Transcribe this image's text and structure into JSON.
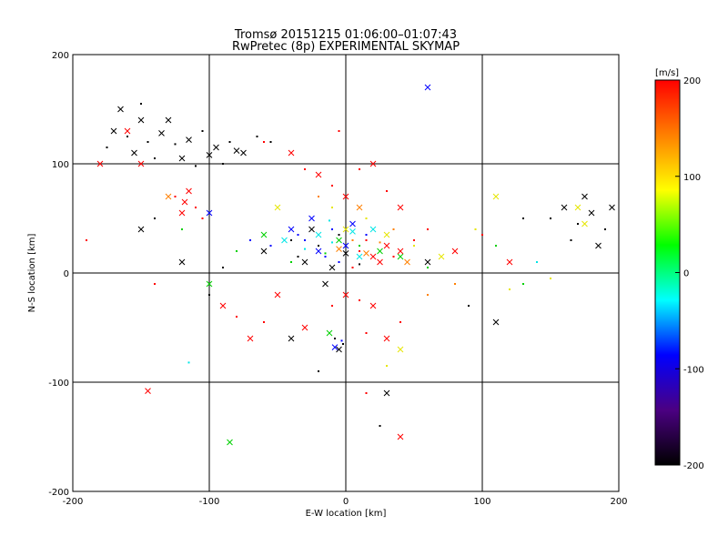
{
  "chart_data": {
    "type": "scatter",
    "title": "Tromsø 20151215 01:06:00–01:07:43",
    "subtitle": "RwPretec (8p) EXPERIMENTAL SKYMAP",
    "xlabel": "E-W location [km]",
    "ylabel": "N-S location [km]",
    "xlim": [
      -200,
      200
    ],
    "ylim": [
      -200,
      200
    ],
    "xticks": [
      "-200",
      "-100",
      "0",
      "100",
      "200"
    ],
    "yticks": [
      "-200",
      "-100",
      "0",
      "100",
      "200"
    ],
    "grid": true,
    "marker_styles": [
      "x",
      "dot"
    ],
    "colorbar": {
      "unit": "[m/s]",
      "range": [
        -200,
        200
      ],
      "ticks": [
        "200",
        "100",
        "0",
        "-100",
        "-200"
      ],
      "colormap": [
        "#000000",
        "#4b0082",
        "#0000ff",
        "#00ffff",
        "#00ff00",
        "#ffff00",
        "#ff8000",
        "#ff0000"
      ]
    },
    "series": [
      {
        "name": "",
        "color": "#000000",
        "velocity_range": [
          -200,
          -160
        ],
        "points": [
          [
            -170,
            130
          ],
          [
            -160,
            125
          ],
          [
            -150,
            140
          ],
          [
            -145,
            120
          ],
          [
            -135,
            128
          ],
          [
            -125,
            118
          ],
          [
            -115,
            122
          ],
          [
            -105,
            130
          ],
          [
            -95,
            115
          ],
          [
            -85,
            120
          ],
          [
            -75,
            110
          ],
          [
            -65,
            125
          ],
          [
            -155,
            110
          ],
          [
            -140,
            105
          ],
          [
            -120,
            105
          ],
          [
            -110,
            98
          ],
          [
            -100,
            108
          ],
          [
            -90,
            100
          ],
          [
            -80,
            112
          ],
          [
            -175,
            115
          ],
          [
            -165,
            150
          ],
          [
            -150,
            155
          ],
          [
            -130,
            140
          ],
          [
            -55,
            120
          ],
          [
            160,
            60
          ],
          [
            170,
            45
          ],
          [
            180,
            55
          ],
          [
            190,
            40
          ],
          [
            195,
            60
          ],
          [
            165,
            30
          ],
          [
            185,
            25
          ],
          [
            150,
            50
          ],
          [
            175,
            70
          ],
          [
            -140,
            50
          ],
          [
            -150,
            40
          ],
          [
            -90,
            5
          ],
          [
            -60,
            20
          ],
          [
            -40,
            30
          ],
          [
            -30,
            10
          ],
          [
            -20,
            25
          ],
          [
            -10,
            5
          ],
          [
            -5,
            35
          ],
          [
            0,
            18
          ],
          [
            10,
            8
          ],
          [
            -25,
            40
          ],
          [
            -35,
            15
          ],
          [
            -15,
            -10
          ],
          [
            -8,
            -60
          ],
          [
            -5,
            -70
          ],
          [
            -2,
            -65
          ],
          [
            30,
            -110
          ],
          [
            25,
            -140
          ],
          [
            -40,
            -60
          ],
          [
            -20,
            -90
          ],
          [
            60,
            10
          ],
          [
            90,
            -30
          ],
          [
            110,
            -45
          ],
          [
            130,
            50
          ],
          [
            -120,
            10
          ],
          [
            -100,
            -20
          ]
        ]
      },
      {
        "name": "",
        "color": "#0000ff",
        "velocity_range": [
          -140,
          -80
        ],
        "points": [
          [
            -30,
            30
          ],
          [
            -20,
            20
          ],
          [
            -10,
            40
          ],
          [
            0,
            25
          ],
          [
            -15,
            15
          ],
          [
            5,
            45
          ],
          [
            -5,
            10
          ],
          [
            -25,
            50
          ],
          [
            -35,
            35
          ],
          [
            -8,
            -68
          ],
          [
            -3,
            -62
          ],
          [
            -40,
            40
          ],
          [
            15,
            35
          ],
          [
            60,
            170
          ],
          [
            -70,
            30
          ],
          [
            -100,
            55
          ],
          [
            -55,
            25
          ]
        ]
      },
      {
        "name": "",
        "color": "#00e6e6",
        "velocity_range": [
          -80,
          -30
        ],
        "points": [
          [
            -20,
            35
          ],
          [
            -10,
            28
          ],
          [
            5,
            38
          ],
          [
            -30,
            22
          ],
          [
            -45,
            30
          ],
          [
            -115,
            -82
          ],
          [
            10,
            15
          ],
          [
            -12,
            48
          ],
          [
            20,
            40
          ],
          [
            140,
            10
          ]
        ]
      },
      {
        "name": "",
        "color": "#00d000",
        "velocity_range": [
          -30,
          40
        ],
        "points": [
          [
            -15,
            18
          ],
          [
            -5,
            30
          ],
          [
            10,
            25
          ],
          [
            25,
            20
          ],
          [
            -40,
            10
          ],
          [
            -60,
            35
          ],
          [
            -80,
            20
          ],
          [
            40,
            15
          ],
          [
            60,
            5
          ],
          [
            -100,
            -10
          ],
          [
            -120,
            40
          ],
          [
            -12,
            -55
          ],
          [
            130,
            -10
          ],
          [
            -85,
            -155
          ],
          [
            110,
            25
          ]
        ]
      },
      {
        "name": "",
        "color": "#e6e600",
        "velocity_range": [
          40,
          110
        ],
        "points": [
          [
            0,
            40
          ],
          [
            15,
            50
          ],
          [
            30,
            35
          ],
          [
            50,
            25
          ],
          [
            70,
            15
          ],
          [
            95,
            40
          ],
          [
            110,
            70
          ],
          [
            150,
            -5
          ],
          [
            175,
            45
          ],
          [
            -10,
            60
          ],
          [
            40,
            -70
          ],
          [
            30,
            -85
          ],
          [
            -50,
            60
          ],
          [
            120,
            -15
          ],
          [
            170,
            60
          ]
        ]
      },
      {
        "name": "",
        "color": "#ff8000",
        "velocity_range": [
          110,
          160
        ],
        "points": [
          [
            5,
            30
          ],
          [
            15,
            18
          ],
          [
            25,
            28
          ],
          [
            -5,
            22
          ],
          [
            35,
            40
          ],
          [
            10,
            60
          ],
          [
            -20,
            70
          ],
          [
            45,
            10
          ],
          [
            60,
            -20
          ],
          [
            -130,
            70
          ],
          [
            80,
            -10
          ]
        ]
      },
      {
        "name": "",
        "color": "#ff0000",
        "velocity_range": [
          160,
          200
        ],
        "points": [
          [
            -180,
            100
          ],
          [
            -190,
            30
          ],
          [
            -160,
            130
          ],
          [
            -125,
            70
          ],
          [
            -118,
            65
          ],
          [
            -110,
            60
          ],
          [
            -115,
            75
          ],
          [
            -105,
            50
          ],
          [
            -120,
            55
          ],
          [
            -60,
            120
          ],
          [
            -40,
            110
          ],
          [
            -30,
            95
          ],
          [
            -20,
            90
          ],
          [
            -10,
            80
          ],
          [
            0,
            70
          ],
          [
            10,
            95
          ],
          [
            20,
            100
          ],
          [
            30,
            75
          ],
          [
            40,
            60
          ],
          [
            10,
            20
          ],
          [
            20,
            15
          ],
          [
            15,
            30
          ],
          [
            25,
            10
          ],
          [
            5,
            5
          ],
          [
            30,
            25
          ],
          [
            35,
            15
          ],
          [
            40,
            20
          ],
          [
            50,
            30
          ],
          [
            0,
            -20
          ],
          [
            10,
            -25
          ],
          [
            20,
            -30
          ],
          [
            -10,
            -30
          ],
          [
            -50,
            -20
          ],
          [
            -60,
            -45
          ],
          [
            -70,
            -60
          ],
          [
            -80,
            -40
          ],
          [
            -30,
            -50
          ],
          [
            15,
            -55
          ],
          [
            30,
            -60
          ],
          [
            40,
            -45
          ],
          [
            -145,
            -108
          ],
          [
            15,
            -110
          ],
          [
            40,
            -150
          ],
          [
            -5,
            130
          ],
          [
            -150,
            100
          ],
          [
            60,
            40
          ],
          [
            80,
            20
          ],
          [
            100,
            35
          ],
          [
            120,
            10
          ],
          [
            -140,
            -10
          ],
          [
            -90,
            -30
          ]
        ]
      }
    ]
  }
}
